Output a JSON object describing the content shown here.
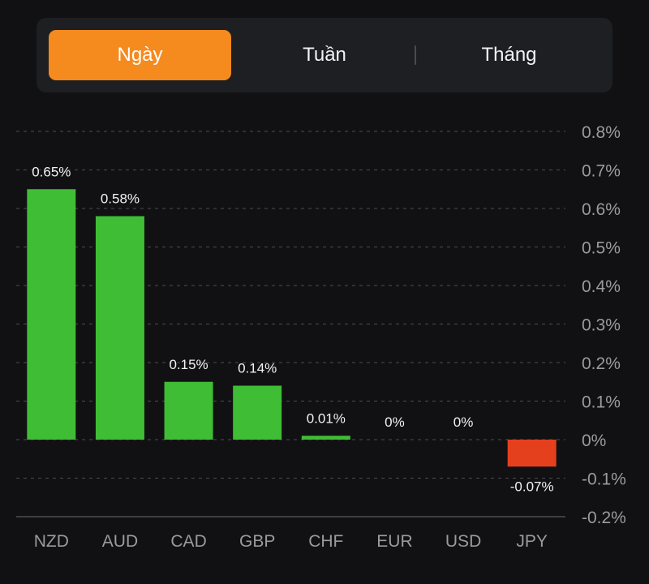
{
  "tabs": [
    {
      "label": "Ngày",
      "active": true
    },
    {
      "label": "Tuần",
      "active": false
    },
    {
      "label": "Tháng",
      "active": false
    }
  ],
  "colors": {
    "accent": "#f58a1f",
    "positive": "#3fbd34",
    "negative": "#e5401e",
    "grid": "#4c4d52",
    "label": "#9a9aa0"
  },
  "chart_data": {
    "type": "bar",
    "categories": [
      "NZD",
      "AUD",
      "CAD",
      "GBP",
      "CHF",
      "EUR",
      "USD",
      "JPY"
    ],
    "values": [
      0.65,
      0.58,
      0.15,
      0.14,
      0.01,
      0,
      0,
      -0.07
    ],
    "value_labels": [
      "0.65%",
      "0.58%",
      "0.15%",
      "0.14%",
      "0.01%",
      "0%",
      "0%",
      "-0.07%"
    ],
    "ylim": [
      -0.2,
      0.8
    ],
    "yticks": [
      0.8,
      0.7,
      0.6,
      0.5,
      0.4,
      0.3,
      0.2,
      0.1,
      0,
      -0.1,
      -0.2
    ],
    "ytick_labels": [
      "0.8%",
      "0.7%",
      "0.6%",
      "0.5%",
      "0.4%",
      "0.3%",
      "0.2%",
      "0.1%",
      "0%",
      "-0.1%",
      "-0.2%"
    ],
    "grid": true,
    "y_axis_position": "right"
  }
}
